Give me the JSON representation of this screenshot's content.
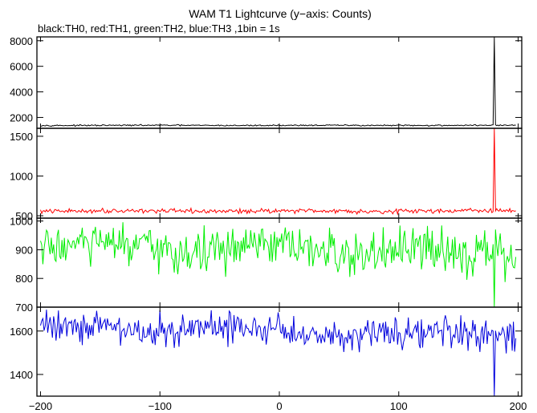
{
  "title": "WAM T1 Lightcurve (y−axis: Counts)",
  "subtitle": "black:TH0, red:TH1, green:TH2, blue:TH3 ,1bin = 1s",
  "chart_data": {
    "type": "line",
    "title": "WAM T1 Lightcurve (y−axis: Counts)",
    "subtitle": "black:TH0, red:TH1, green:TH2, blue:TH3 ,1bin = 1s",
    "xlim": [
      -203,
      203
    ],
    "x_ticks": [
      -200,
      -100,
      0,
      100,
      200
    ],
    "x_tick_labels": [
      "−200",
      "−100",
      "0",
      "100",
      "200"
    ],
    "x_range": [
      -200,
      198
    ],
    "bin_size": 1,
    "grid": false,
    "panels": [
      {
        "name": "TH0",
        "color": "#000000",
        "ylim": [
          1150,
          8300
        ],
        "y_ticks": [
          2000,
          4000,
          6000,
          8000
        ],
        "baseline": 1380,
        "noise": 25,
        "spikes": [
          {
            "x": 180,
            "value": 8400
          }
        ]
      },
      {
        "name": "TH1",
        "color": "#ff0000",
        "ylim": [
          470,
          1600
        ],
        "y_ticks": [
          500,
          1000,
          1500
        ],
        "baseline": 560,
        "noise": 14,
        "spikes": [
          {
            "x": 180,
            "value": 1620
          }
        ]
      },
      {
        "name": "TH2",
        "color": "#00ee00",
        "ylim": [
          700,
          1010
        ],
        "y_ticks": [
          700,
          800,
          900,
          1000
        ],
        "baseline": 910,
        "baseline_end": 885,
        "noise": 38,
        "spikes": [
          {
            "x": 180,
            "value": 700
          }
        ]
      },
      {
        "name": "TH3",
        "color": "#0000dd",
        "ylim": [
          1300,
          1710
        ],
        "y_ticks": [
          1400,
          1600
        ],
        "baseline": 1620,
        "baseline_end": 1580,
        "noise": 38,
        "spikes": [
          {
            "x": 180,
            "value": 1300
          }
        ]
      }
    ]
  }
}
